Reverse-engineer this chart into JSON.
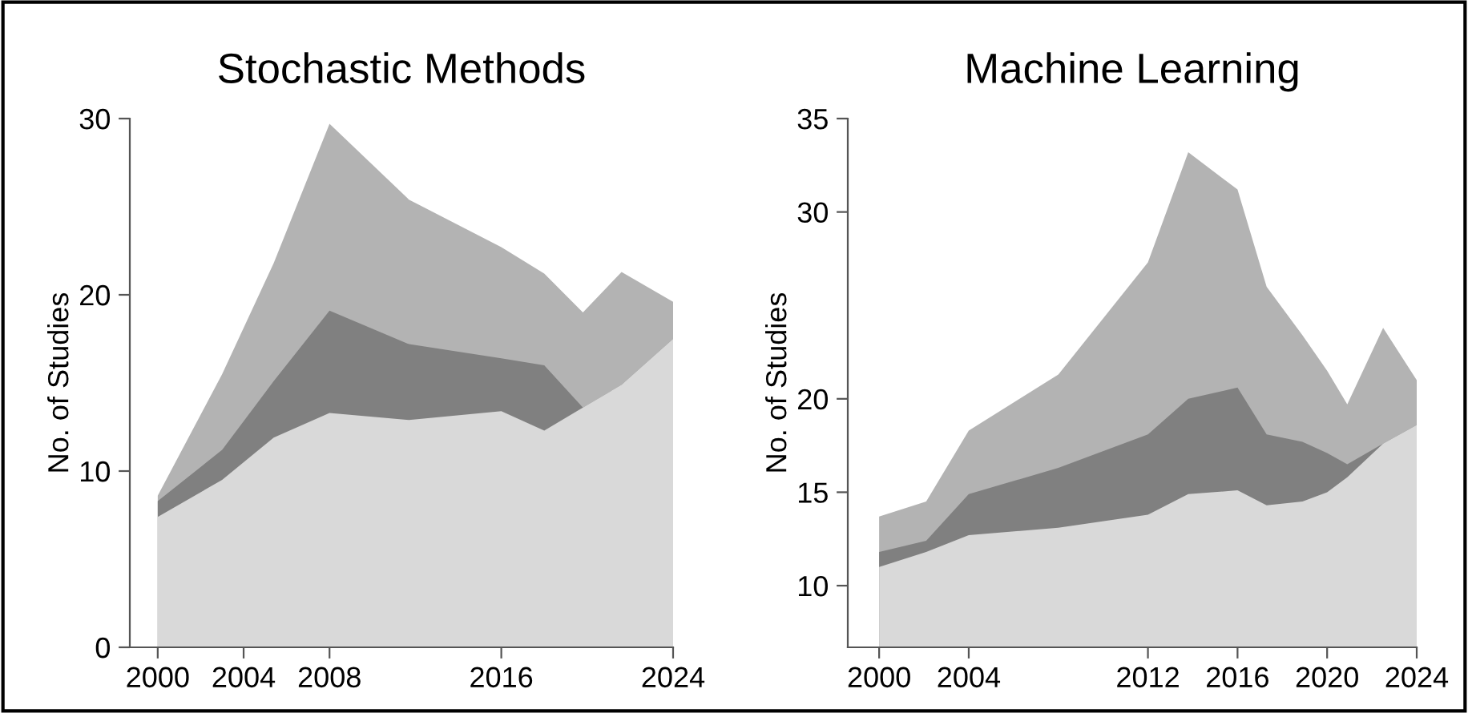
{
  "chart_data": [
    {
      "type": "area",
      "title": "Stochastic Methods",
      "ylabel": "No. of Studies",
      "x": [
        2000,
        2003.0,
        2005.4,
        2008,
        2011.7,
        2016,
        2018.0,
        2019.8,
        2021.6,
        2024
      ],
      "series": [
        {
          "color": "#b3b3b3",
          "values": [
            8.6,
            15.5,
            21.8,
            29.7,
            25.4,
            22.7,
            21.2,
            19.0,
            21.3,
            19.6
          ]
        },
        {
          "color": "#808080",
          "values": [
            8.3,
            11.2,
            15.1,
            19.1,
            17.2,
            16.4,
            16.0,
            13.6,
            14.9,
            17.5
          ]
        },
        {
          "color": "#d9d9d9",
          "values": [
            7.4,
            9.5,
            11.9,
            13.3,
            12.9,
            13.4,
            12.3,
            13.6,
            14.9,
            17.5
          ]
        }
      ],
      "xlim": [
        1998.7,
        2024
      ],
      "xticks": [
        2000,
        2004,
        2008,
        2016,
        2024
      ],
      "ylim": [
        0,
        30
      ],
      "yticks": [
        0,
        10,
        20,
        30
      ]
    },
    {
      "type": "area",
      "title": "Machine Learning",
      "ylabel": "No. of Studies",
      "x": [
        2000,
        2002.1,
        2004,
        2008.0,
        2012,
        2013.8,
        2016,
        2017.3,
        2018.9,
        2020,
        2020.9,
        2022.5,
        2024
      ],
      "series": [
        {
          "color": "#b3b3b3",
          "values": [
            13.7,
            14.5,
            18.3,
            21.3,
            27.3,
            33.2,
            31.2,
            26.0,
            23.4,
            21.5,
            19.7,
            23.8,
            21.0
          ]
        },
        {
          "color": "#808080",
          "values": [
            11.8,
            12.4,
            14.9,
            16.3,
            18.1,
            20.0,
            20.6,
            18.1,
            17.7,
            17.1,
            16.5,
            17.6,
            18.6
          ]
        },
        {
          "color": "#d9d9d9",
          "values": [
            11.0,
            11.8,
            12.7,
            13.1,
            13.8,
            14.9,
            15.1,
            14.3,
            14.5,
            15.0,
            15.8,
            17.6,
            18.6
          ]
        }
      ],
      "xlim": [
        1998.6,
        2024
      ],
      "xticks": [
        2000,
        2004,
        2012,
        2016,
        2020,
        2024
      ],
      "ylim": [
        6.7,
        35
      ],
      "yticks": [
        10,
        15,
        20,
        30,
        35
      ]
    }
  ]
}
